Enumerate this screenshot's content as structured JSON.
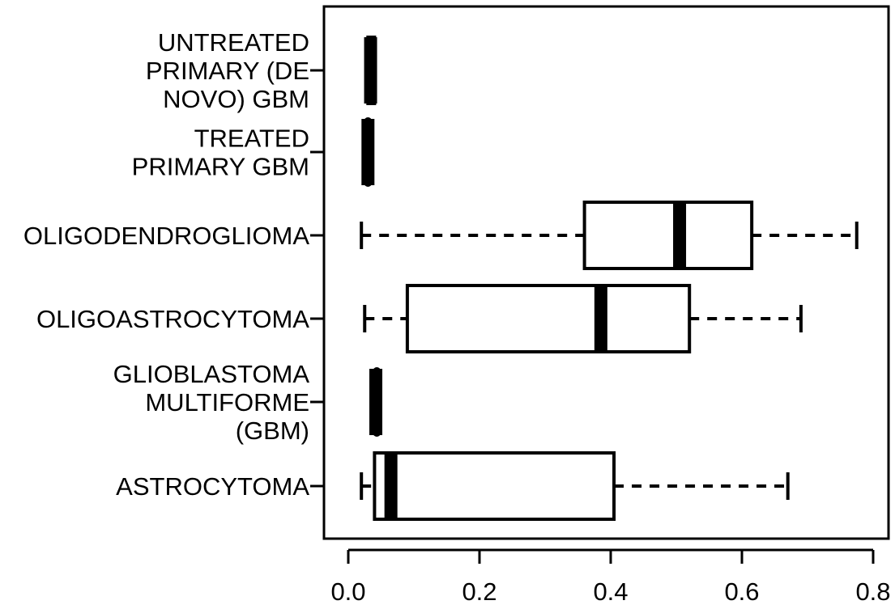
{
  "chart_data": {
    "type": "boxplot",
    "orientation": "horizontal",
    "title": "",
    "xlabel": "",
    "ylabel": "",
    "xlim": [
      0.0,
      0.8
    ],
    "x_ticks": [
      "0.0",
      "0.2",
      "0.4",
      "0.6",
      "0.8"
    ],
    "grid": false,
    "legend": "none",
    "categories": [
      {
        "name": "UNTREATED PRIMARY (DE NOVO) GBM",
        "label_lines": [
          "UNTREATED",
          "PRIMARY (DE",
          "NOVO) GBM"
        ],
        "min": 0.03,
        "q1": 0.03,
        "median": 0.034,
        "q3": 0.04,
        "max": 0.04
      },
      {
        "name": "TREATED PRIMARY GBM",
        "label_lines": [
          "TREATED",
          "PRIMARY GBM"
        ],
        "min": 0.027,
        "q1": 0.027,
        "median": 0.03,
        "q3": 0.033,
        "max": 0.033
      },
      {
        "name": "OLIGODENDROGLIOMA",
        "label_lines": [
          "OLIGODENDROGLIOMA"
        ],
        "min": 0.02,
        "q1": 0.36,
        "median": 0.505,
        "q3": 0.615,
        "max": 0.775
      },
      {
        "name": "OLIGOASTROCYTOMA",
        "label_lines": [
          "OLIGOASTROCYTOMA"
        ],
        "min": 0.025,
        "q1": 0.09,
        "median": 0.385,
        "q3": 0.52,
        "max": 0.69
      },
      {
        "name": "GLIOBLASTOMA MULTIFORME (GBM)",
        "label_lines": [
          "GLIOBLASTOMA",
          "MULTIFORME",
          "(GBM)"
        ],
        "min": 0.04,
        "q1": 0.04,
        "median": 0.042,
        "q3": 0.047,
        "max": 0.047
      },
      {
        "name": "ASTROCYTOMA",
        "label_lines": [
          "ASTROCYTOMA"
        ],
        "min": 0.02,
        "q1": 0.04,
        "median": 0.065,
        "q3": 0.405,
        "max": 0.67
      }
    ]
  }
}
